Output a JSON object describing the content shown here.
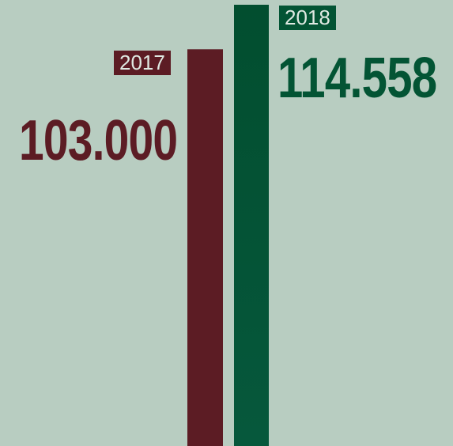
{
  "chart_data": {
    "type": "bar",
    "categories": [
      "2017",
      "2018"
    ],
    "values": [
      103000,
      114558
    ],
    "value_labels": [
      "103.000",
      "114.558"
    ],
    "ylim": [
      0,
      114558
    ],
    "grid": false,
    "colors": [
      "#5c1c24",
      "#035434"
    ]
  },
  "background_color": "#b8cdc1"
}
